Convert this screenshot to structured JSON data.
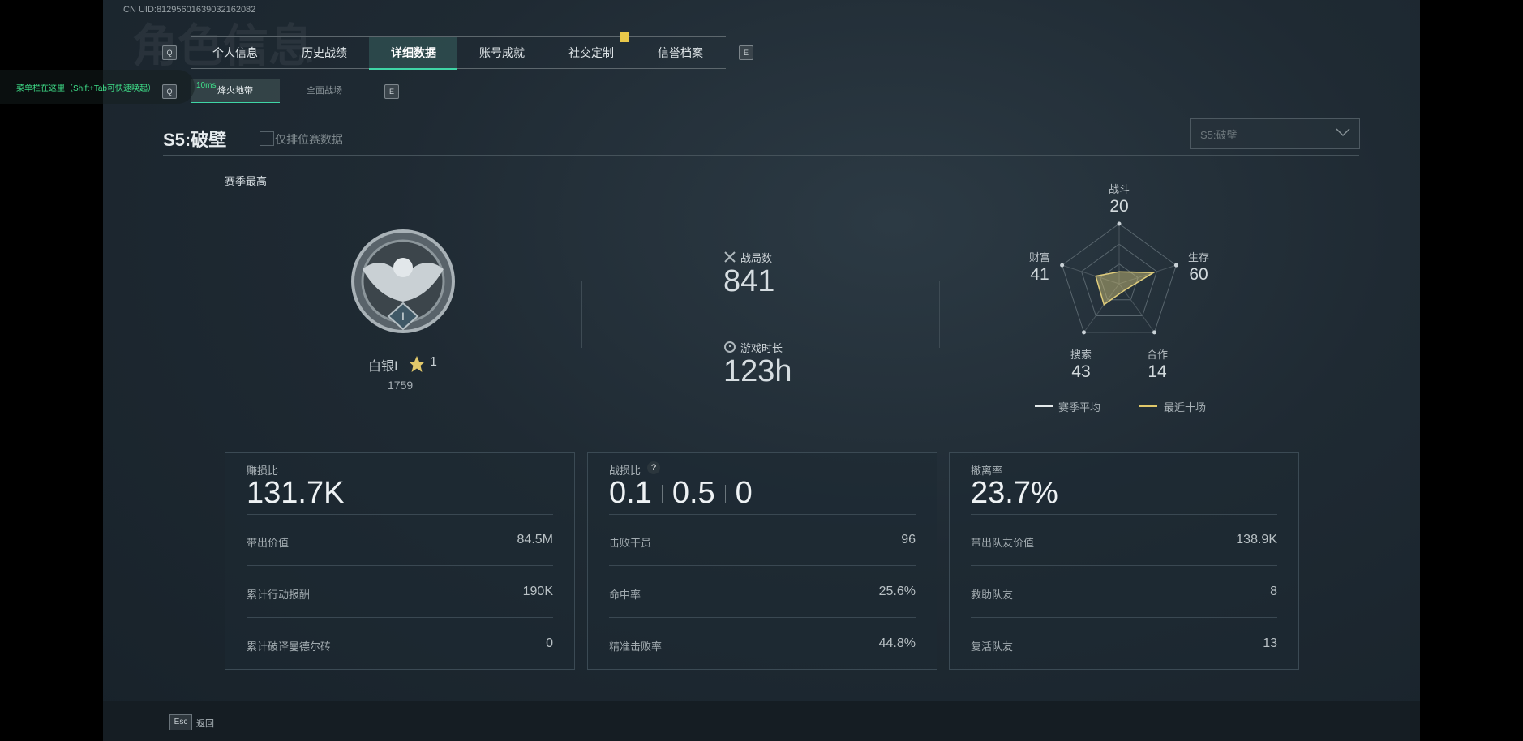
{
  "header": {
    "watermark": "角色信息",
    "uid": "CN UID:81295601639032162082",
    "notice": "菜单栏在这里（Shift+Tab可快速唤起）",
    "ping": "10ms"
  },
  "tabs": {
    "items": [
      "个人信息",
      "历史战绩",
      "详细数据",
      "账号成就",
      "社交定制",
      "信誉档案"
    ],
    "prev_key": "Q",
    "next_key": "E"
  },
  "subtabs": {
    "items": [
      "烽火地带",
      "全面战场"
    ],
    "prev_key": "Q",
    "next_key": "E"
  },
  "season": {
    "title": "S5:破壁",
    "ranked_only": "仅排位赛数据",
    "dropdown": "S5:破壁"
  },
  "rank": {
    "heading": "赛季最高",
    "name": "白银Ⅰ",
    "stars": 1,
    "score": 1759
  },
  "summary": [
    {
      "label": "战局数",
      "value": 841
    },
    {
      "label": "游戏时长",
      "value": "123h"
    }
  ],
  "radar": {
    "axes": [
      "战斗",
      "生存",
      "合作",
      "搜索",
      "财富"
    ],
    "values": [
      20,
      60,
      14,
      43,
      41
    ],
    "rlim": [
      0,
      100
    ],
    "legend": [
      "赛季平均",
      "最近十场"
    ]
  },
  "cards": [
    {
      "title": "赚损比",
      "value": "131.7K",
      "rows": [
        [
          "带出价值",
          "84.5M"
        ],
        [
          "累计行动报酬",
          "190K"
        ],
        [
          "累计破译曼德尔砖",
          0
        ]
      ]
    },
    {
      "title": "战损比",
      "help": "?",
      "values": [
        0.1,
        0.5,
        0
      ],
      "rows": [
        [
          "击败干员",
          96
        ],
        [
          "命中率",
          "25.6%"
        ],
        [
          "精准击败率",
          "44.8%"
        ]
      ]
    },
    {
      "title": "撤离率",
      "value": "23.7%",
      "rows": [
        [
          "带出队友价值",
          "138.9K"
        ],
        [
          "救助队友",
          8
        ],
        [
          "复活队友",
          13
        ]
      ]
    }
  ],
  "footer": {
    "key": "Esc",
    "label": "返回"
  }
}
